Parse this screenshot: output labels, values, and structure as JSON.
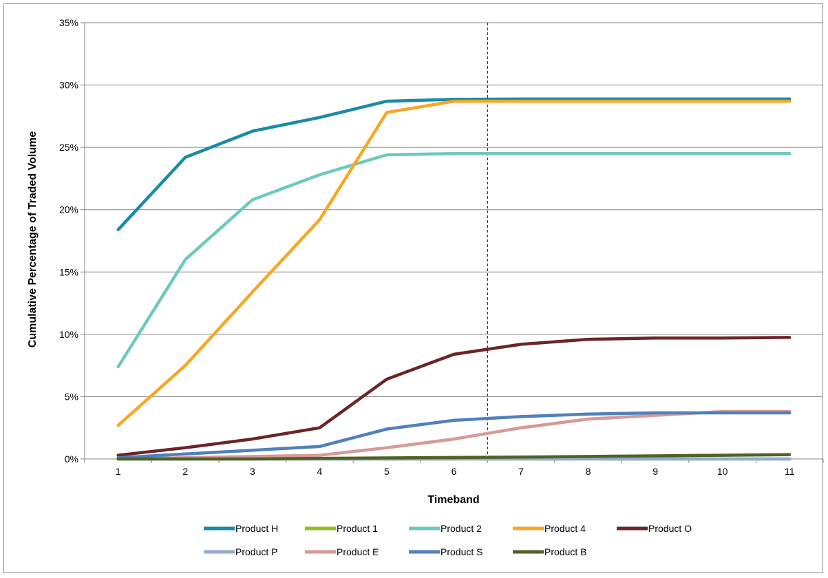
{
  "chart_data": {
    "type": "line",
    "title": "",
    "xlabel": "Timeband",
    "ylabel": "Cumulative Percentage of Traded Volume",
    "x": [
      1,
      2,
      3,
      4,
      5,
      6,
      7,
      8,
      9,
      10,
      11
    ],
    "ylim": [
      0,
      35
    ],
    "yticks": [
      "0%",
      "5%",
      "10%",
      "15%",
      "20%",
      "25%",
      "30%",
      "35%"
    ],
    "grid": "horizontal",
    "legend_position": "bottom",
    "reference_line": {
      "style": "dashed",
      "x": 6.5
    },
    "series": [
      {
        "name": "Product H",
        "color": "#1a8aa8",
        "values": [
          18.4,
          24.2,
          26.3,
          27.4,
          28.7,
          28.85,
          28.88,
          28.88,
          28.88,
          28.88,
          28.88
        ]
      },
      {
        "name": "Product 1",
        "color": "#8fbf1f",
        "values": [
          0.0,
          0.0,
          0.0,
          0.0,
          0.0,
          0.0,
          0.0,
          0.0,
          0.0,
          0.0,
          0.0
        ]
      },
      {
        "name": "Product 2",
        "color": "#6cc9c0",
        "values": [
          7.4,
          16.0,
          20.8,
          22.8,
          24.4,
          24.5,
          24.5,
          24.5,
          24.5,
          24.5,
          24.5
        ]
      },
      {
        "name": "Product 4",
        "color": "#f8a623",
        "values": [
          2.7,
          7.5,
          13.4,
          19.2,
          27.8,
          28.7,
          28.7,
          28.7,
          28.7,
          28.7,
          28.7
        ]
      },
      {
        "name": "Product O",
        "color": "#6b2527",
        "values": [
          0.3,
          0.9,
          1.6,
          2.5,
          6.4,
          8.4,
          9.2,
          9.6,
          9.7,
          9.7,
          9.75
        ]
      },
      {
        "name": "Product P",
        "color": "#94aacd",
        "values": [
          0.0,
          0.0,
          0.0,
          0.0,
          0.0,
          0.0,
          0.0,
          0.0,
          0.0,
          0.0,
          0.0
        ]
      },
      {
        "name": "Product E",
        "color": "#d79a96",
        "values": [
          0.0,
          0.1,
          0.2,
          0.3,
          0.9,
          1.6,
          2.5,
          3.2,
          3.5,
          3.8,
          3.8
        ]
      },
      {
        "name": "Product S",
        "color": "#4f81bd",
        "values": [
          0.1,
          0.4,
          0.7,
          1.0,
          2.4,
          3.1,
          3.4,
          3.6,
          3.7,
          3.7,
          3.7
        ]
      },
      {
        "name": "Product B",
        "color": "#4f6228",
        "values": [
          0.0,
          0.0,
          0.0,
          0.05,
          0.08,
          0.12,
          0.15,
          0.2,
          0.25,
          0.3,
          0.35
        ]
      }
    ]
  }
}
